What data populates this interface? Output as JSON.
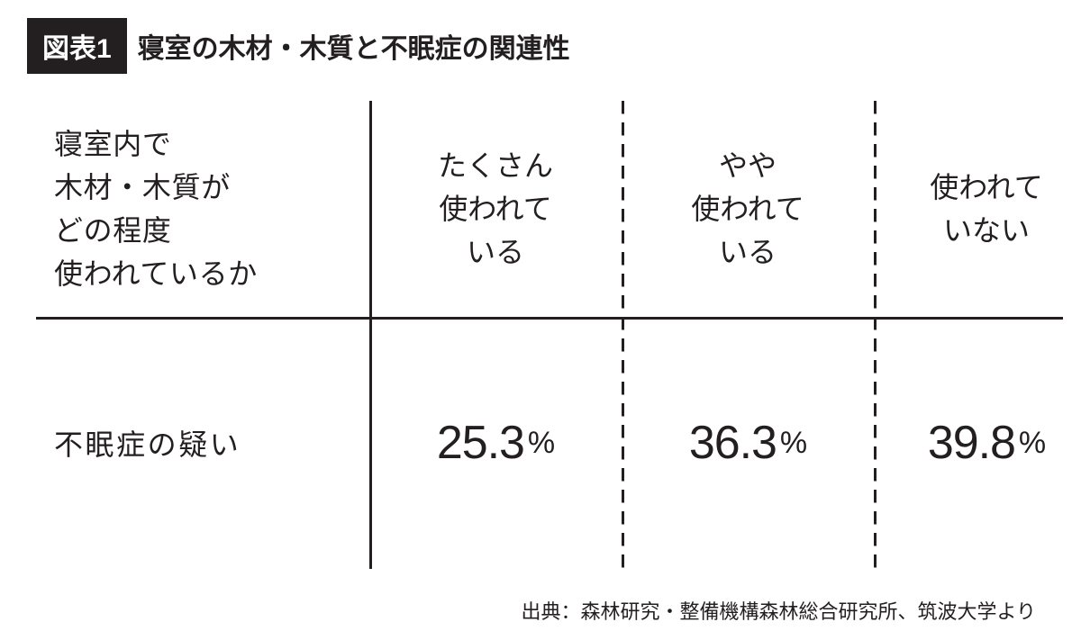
{
  "type": "table",
  "background_color": "#ffffff",
  "text_color": "#231f20",
  "header": {
    "figure_label": "図表1",
    "figure_title": "寝室の木材・木質と不眠症の関連性",
    "label_bg_color": "#231f20",
    "label_text_color": "#ffffff",
    "title_fontsize": 30
  },
  "table": {
    "row_header": "寝室内で\n木材・木質が\nどの程度\n使われているか",
    "columns": [
      "たくさん\n使われて\nいる",
      "やや\n使われて\nいる",
      "使われて\nいない"
    ],
    "row_label": "不眠症の疑い",
    "values": [
      "25.3",
      "36.3",
      "39.8"
    ],
    "value_unit": "%",
    "header_fontsize": 32,
    "value_fontsize": 52,
    "unit_fontsize": 34,
    "rule_color": "#231f20",
    "rule_width": 3,
    "dash_pattern": "60/40"
  },
  "source": "出典：森林研究・整備機構森林総合研究所、筑波大学より",
  "source_fontsize": 22
}
